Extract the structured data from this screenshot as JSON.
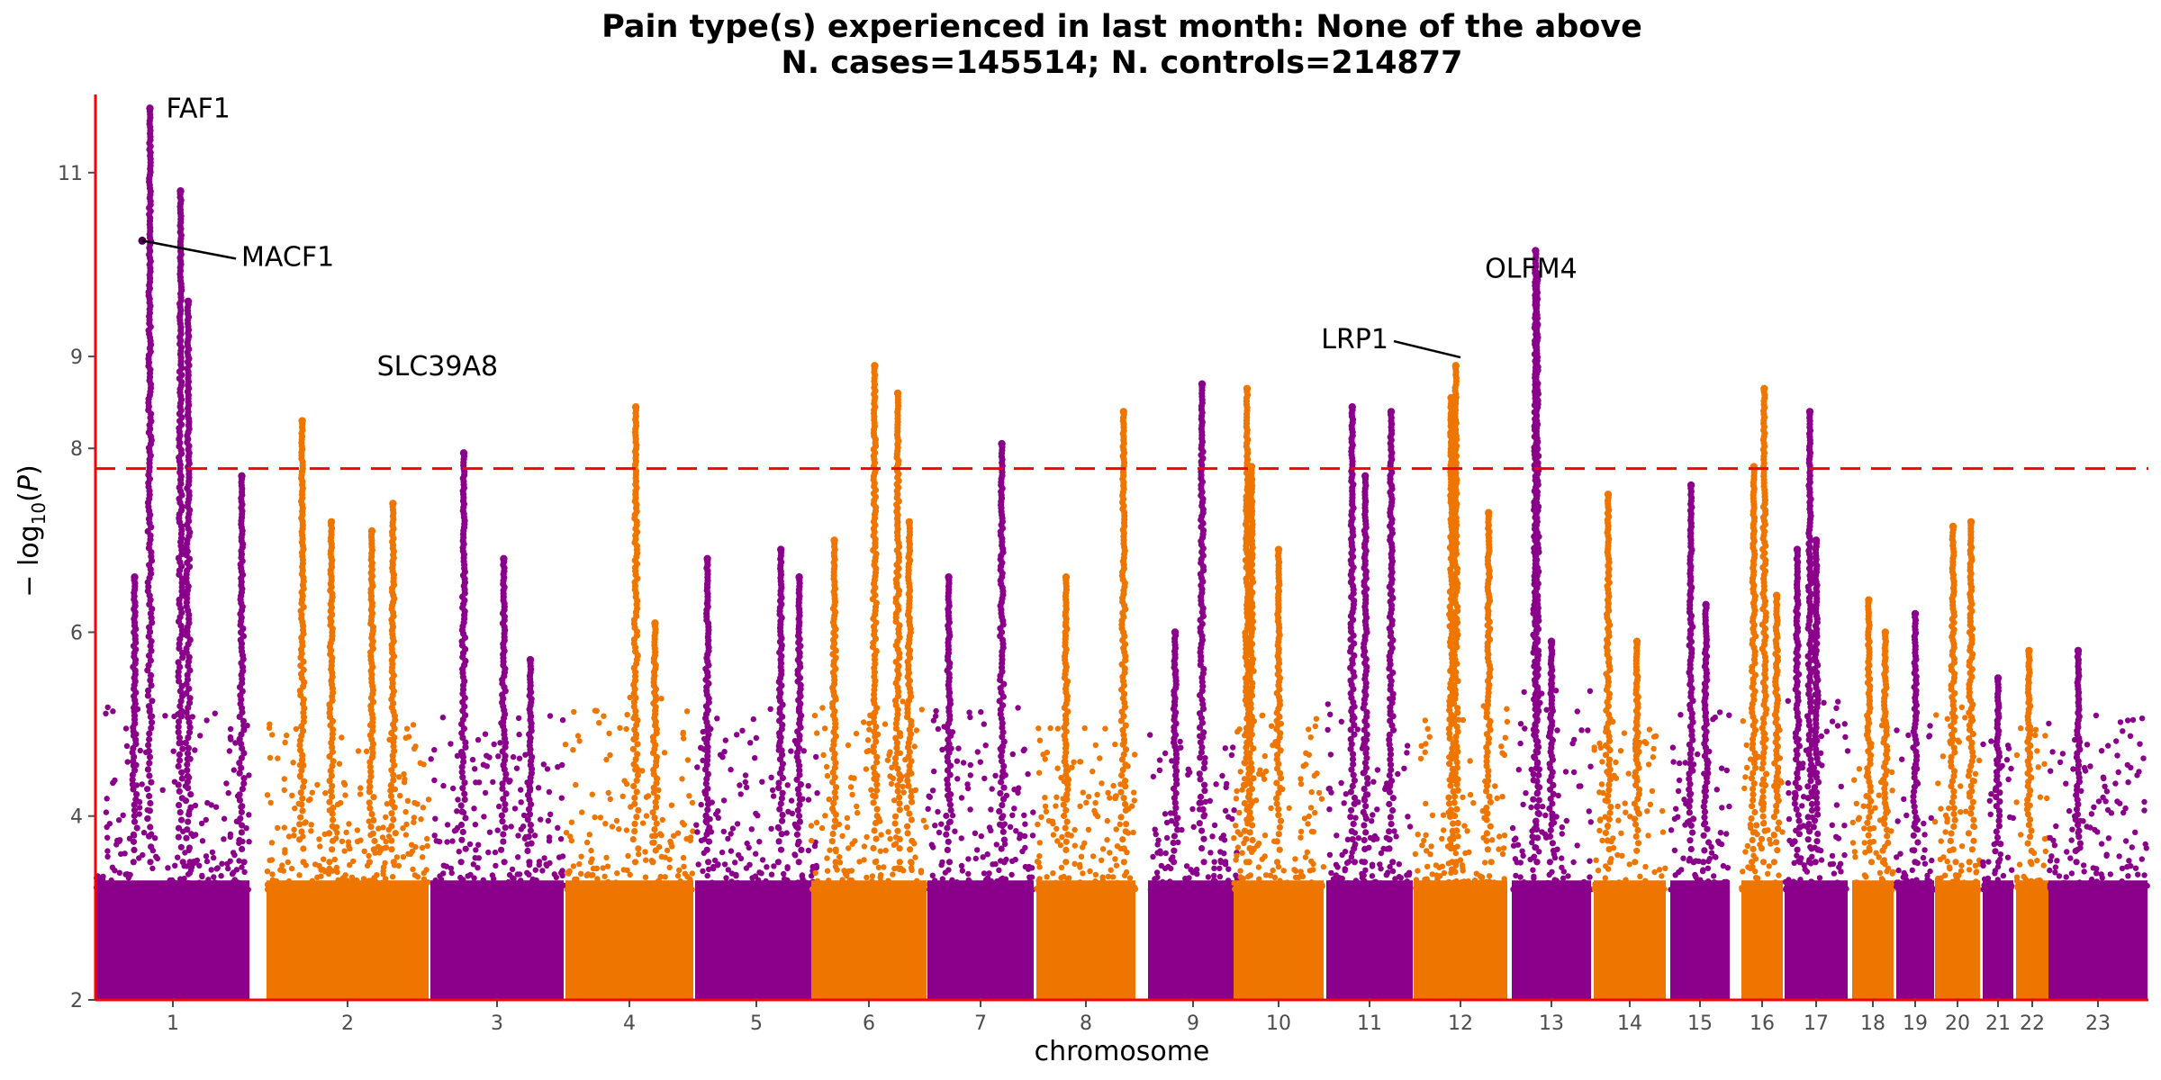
{
  "chart_data": {
    "type": "scatter",
    "title_line1": "Pain type(s) experienced in last month: None of the above",
    "title_line2": "N. cases=145514; N. controls=214877",
    "xlabel": "chromosome",
    "ylabel_main": "− log",
    "ylabel_sub": "10",
    "ylabel_open": "(",
    "ylabel_var": "P",
    "ylabel_close": ")",
    "ylim": [
      2,
      11.85
    ],
    "y_ticks": [
      2,
      4,
      6,
      8,
      9,
      11
    ],
    "y_tick_labels": [
      "2",
      "4",
      "6",
      "8",
      "9",
      "11"
    ],
    "significance_line": 7.78,
    "colors": {
      "purple": "#8b008b",
      "orange": "#ee7600",
      "axis": "#ff0000",
      "threshold": "#ff0000",
      "tick": "#4d4d4d"
    },
    "chromosomes": [
      {
        "label": "1",
        "x": 1,
        "color": "purple",
        "bg": 4.6,
        "peaks": [
          [
            0.35,
            11.7
          ],
          [
            0.55,
            10.8
          ],
          [
            0.6,
            9.6
          ],
          [
            0.95,
            7.7
          ],
          [
            0.25,
            6.6
          ]
        ]
      },
      {
        "label": "2",
        "x": 2,
        "color": "orange",
        "bg": 4.4,
        "peaks": [
          [
            0.22,
            8.3
          ],
          [
            0.4,
            7.2
          ],
          [
            0.65,
            7.1
          ],
          [
            0.78,
            7.4
          ]
        ]
      },
      {
        "label": "3",
        "x": 3,
        "color": "purple",
        "bg": 4.5,
        "peaks": [
          [
            0.25,
            7.95
          ],
          [
            0.55,
            6.8
          ],
          [
            0.75,
            5.7
          ]
        ]
      },
      {
        "label": "4",
        "x": 4,
        "color": "orange",
        "bg": 4.7,
        "peaks": [
          [
            0.55,
            8.45
          ],
          [
            0.7,
            6.1
          ]
        ]
      },
      {
        "label": "5",
        "x": 5,
        "color": "purple",
        "bg": 4.6,
        "peaks": [
          [
            0.1,
            6.8
          ],
          [
            0.7,
            6.9
          ],
          [
            0.85,
            6.6
          ]
        ]
      },
      {
        "label": "6",
        "x": 6,
        "color": "orange",
        "bg": 4.7,
        "peaks": [
          [
            0.2,
            7.0
          ],
          [
            0.55,
            8.9
          ],
          [
            0.75,
            8.6
          ],
          [
            0.85,
            7.2
          ]
        ]
      },
      {
        "label": "7",
        "x": 7,
        "color": "purple",
        "bg": 4.6,
        "peaks": [
          [
            0.2,
            6.6
          ],
          [
            0.7,
            8.05
          ]
        ]
      },
      {
        "label": "8",
        "x": 8,
        "color": "orange",
        "bg": 4.4,
        "peaks": [
          [
            0.3,
            6.6
          ],
          [
            0.88,
            8.4
          ]
        ]
      },
      {
        "label": "9",
        "x": 9,
        "color": "purple",
        "bg": 4.3,
        "peaks": [
          [
            0.6,
            8.7
          ],
          [
            0.3,
            6.0
          ]
        ]
      },
      {
        "label": "10",
        "x": 10,
        "color": "orange",
        "bg": 4.5,
        "peaks": [
          [
            0.15,
            8.65
          ],
          [
            0.2,
            7.8
          ],
          [
            0.5,
            6.9
          ]
        ]
      },
      {
        "label": "11",
        "x": 11,
        "color": "purple",
        "bg": 4.7,
        "peaks": [
          [
            0.3,
            8.45
          ],
          [
            0.45,
            7.7
          ],
          [
            0.75,
            8.4
          ]
        ]
      },
      {
        "label": "12",
        "x": 12,
        "color": "orange",
        "bg": 4.6,
        "peaks": [
          [
            0.45,
            8.9
          ],
          [
            0.4,
            8.55
          ],
          [
            0.8,
            7.3
          ]
        ]
      },
      {
        "label": "13",
        "x": 13,
        "color": "purple",
        "bg": 5.0,
        "peaks": [
          [
            0.3,
            10.15
          ],
          [
            0.32,
            9.9
          ],
          [
            0.5,
            5.9
          ]
        ]
      },
      {
        "label": "14",
        "x": 14,
        "color": "orange",
        "bg": 4.5,
        "peaks": [
          [
            0.2,
            7.5
          ],
          [
            0.6,
            5.9
          ]
        ]
      },
      {
        "label": "15",
        "x": 15,
        "color": "purple",
        "bg": 4.6,
        "peaks": [
          [
            0.35,
            7.6
          ],
          [
            0.6,
            6.3
          ]
        ]
      },
      {
        "label": "16",
        "x": 16,
        "color": "orange",
        "bg": 4.6,
        "peaks": [
          [
            0.3,
            7.8
          ],
          [
            0.55,
            8.65
          ],
          [
            0.85,
            6.4
          ]
        ]
      },
      {
        "label": "17",
        "x": 17,
        "color": "purple",
        "bg": 4.8,
        "peaks": [
          [
            0.4,
            8.4
          ],
          [
            0.5,
            7.0
          ],
          [
            0.2,
            6.9
          ]
        ]
      },
      {
        "label": "18",
        "x": 18,
        "color": "orange",
        "bg": 4.5,
        "peaks": [
          [
            0.4,
            6.35
          ],
          [
            0.8,
            6.0
          ]
        ]
      },
      {
        "label": "19",
        "x": 19,
        "color": "purple",
        "bg": 4.4,
        "peaks": [
          [
            0.5,
            6.2
          ]
        ]
      },
      {
        "label": "20",
        "x": 20,
        "color": "orange",
        "bg": 4.6,
        "peaks": [
          [
            0.4,
            7.15
          ],
          [
            0.8,
            7.2
          ]
        ]
      },
      {
        "label": "21",
        "x": 21,
        "color": "purple",
        "bg": 4.3,
        "peaks": [
          [
            0.5,
            5.5
          ]
        ]
      },
      {
        "label": "22",
        "x": 22,
        "color": "orange",
        "bg": 4.4,
        "peaks": [
          [
            0.4,
            5.8
          ]
        ]
      },
      {
        "label": "23",
        "x": 23,
        "color": "purple",
        "bg": 4.5,
        "peaks": [
          [
            0.3,
            5.8
          ]
        ]
      }
    ],
    "annotations": [
      {
        "label": "FAF1",
        "chrom": 1,
        "y": 11.7
      },
      {
        "label": "MACF1",
        "chrom": 1,
        "y": 10.26
      },
      {
        "label": "SLC39A8",
        "chrom": 4,
        "y": 8.45
      },
      {
        "label": "LRP1",
        "chrom": 12,
        "y": 8.99
      },
      {
        "label": "OLFM4",
        "chrom": 13,
        "y": 10.15
      }
    ]
  }
}
